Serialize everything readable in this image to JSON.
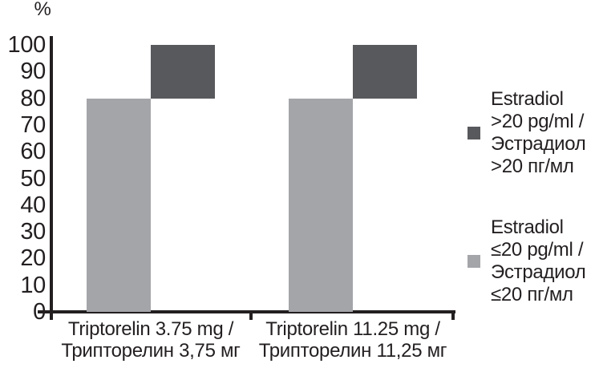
{
  "chart_data": {
    "type": "bar",
    "variant": "stacked-offset",
    "title": "",
    "xlabel": "",
    "ylabel": "%",
    "ylim": [
      0,
      100
    ],
    "y_ticks": [
      0,
      10,
      20,
      30,
      40,
      50,
      60,
      70,
      80,
      90,
      100
    ],
    "grid": false,
    "legend_position": "right",
    "categories": [
      {
        "line1": "Triptorelin 3.75 mg /",
        "line2": "Трипторелин 3,75 мг"
      },
      {
        "line1": "Triptorelin 11.25 mg /",
        "line2": "Трипторелин 11,25 мг"
      }
    ],
    "series": [
      {
        "name": "Estradiol ≤20 pg/ml / Эстрадиол ≤20 пг/мл",
        "values": [
          80,
          80
        ],
        "color": "#a4a5a9"
      },
      {
        "name": "Estradiol >20 pg/ml / Эстрадиол >20 пг/мл",
        "values": [
          20,
          20
        ],
        "color": "#58595c"
      }
    ]
  },
  "legend": {
    "items": [
      {
        "swatch_color": "#58595c",
        "lines": [
          "Estradiol",
          ">20 pg/ml /",
          "Эстрадиол",
          ">20 пг/мл"
        ]
      },
      {
        "swatch_color": "#a4a5a9",
        "lines": [
          "Estradiol",
          "≤20 pg/ml /",
          "Эстрадиол",
          "≤20 пг/мл"
        ]
      }
    ]
  },
  "colors": {
    "axis": "#231f20",
    "text": "#231f20",
    "background": "#ffffff"
  }
}
